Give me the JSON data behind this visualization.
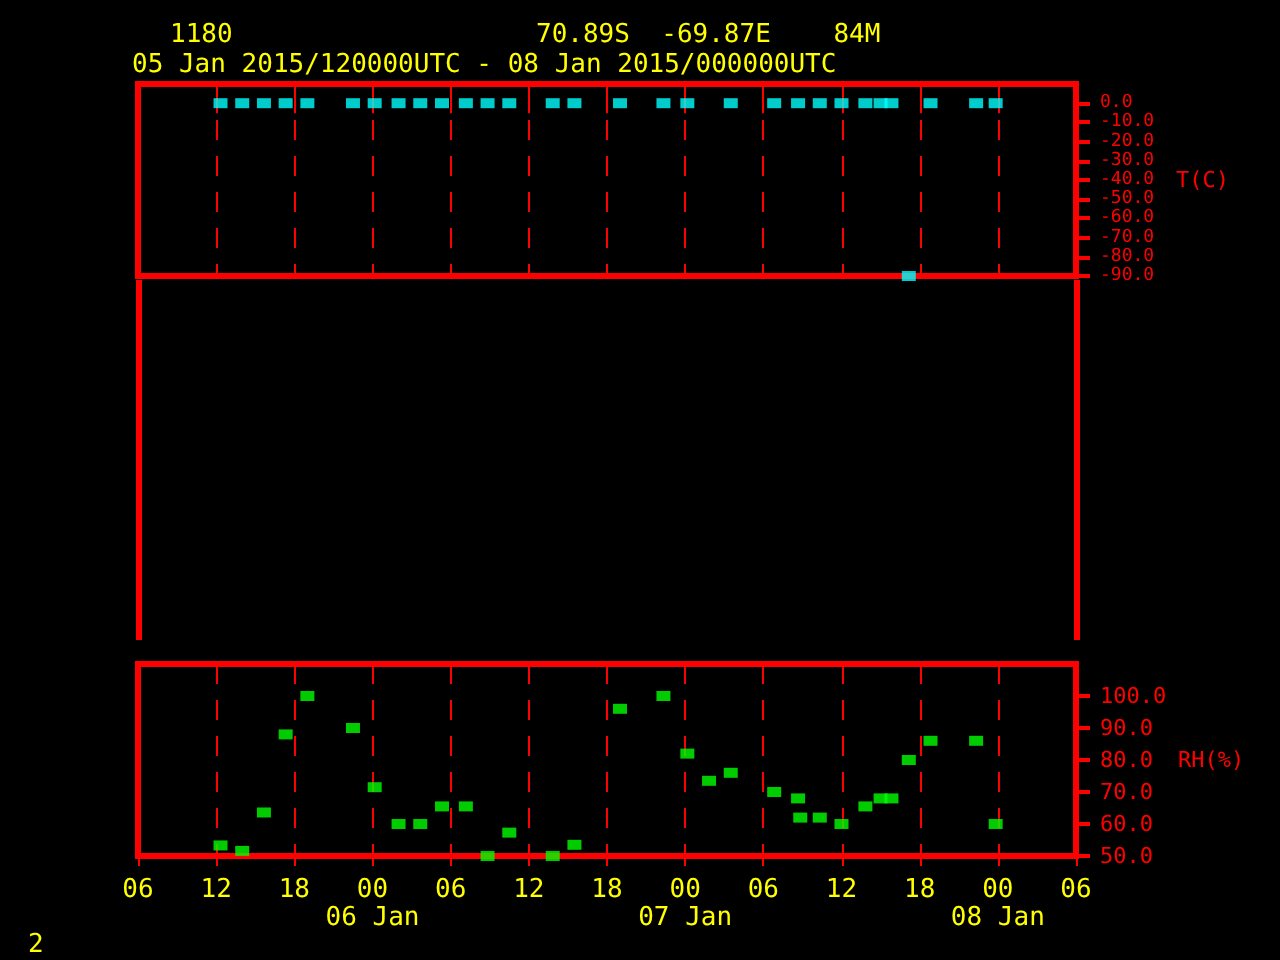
{
  "chart_data": [
    {
      "type": "scatter",
      "title": "1180",
      "subtitle": "05 Jan 2015/120000UTC - 08 Jan 2015/000000UTC",
      "annotations": [
        "70.89S  -69.87E    84M"
      ],
      "ylabel": "T(C)",
      "xlim": [
        "2015-01-05T06:00",
        "2015-01-08T06:00"
      ],
      "xticks": [
        {
          "value": "2015-01-05T06:00",
          "label": null
        },
        {
          "value": "2015-01-05T12:00",
          "label": null
        },
        {
          "value": "2015-01-05T18:00",
          "label": null
        },
        {
          "value": "2015-01-06T00:00",
          "label": null
        },
        {
          "value": "2015-01-06T06:00",
          "label": null
        },
        {
          "value": "2015-01-06T12:00",
          "label": null
        },
        {
          "value": "2015-01-06T18:00",
          "label": null
        },
        {
          "value": "2015-01-07T00:00",
          "label": null
        },
        {
          "value": "2015-01-07T06:00",
          "label": null
        },
        {
          "value": "2015-01-07T12:00",
          "label": null
        },
        {
          "value": "2015-01-07T18:00",
          "label": null
        },
        {
          "value": "2015-01-08T00:00",
          "label": null
        },
        {
          "value": "2015-01-08T06:00",
          "label": null
        }
      ],
      "ylim": [
        -90,
        10
      ],
      "yticks": [
        {
          "value": 0,
          "label": "0.0"
        },
        {
          "value": -10,
          "label": "-10.0"
        },
        {
          "value": -20,
          "label": "-20.0"
        },
        {
          "value": -30,
          "label": "-30.0"
        },
        {
          "value": -40,
          "label": "-40.0"
        },
        {
          "value": -50,
          "label": "-50.0"
        },
        {
          "value": -60,
          "label": "-60.0"
        },
        {
          "value": -70,
          "label": "-70.0"
        },
        {
          "value": -80,
          "label": "-80.0"
        },
        {
          "value": -90,
          "label": "-90.0"
        }
      ],
      "grid": "x",
      "marker": "square",
      "tick_labels": "y",
      "series": [
        {
          "color": "#00ffff",
          "x": [
            "2015-01-05T12:20",
            "2015-01-05T14:00",
            "2015-01-05T15:40",
            "2015-01-05T17:20",
            "2015-01-05T19:00",
            "2015-01-05T22:30",
            "2015-01-06T00:10",
            "2015-01-06T02:00",
            "2015-01-06T03:40",
            "2015-01-06T05:20",
            "2015-01-06T07:10",
            "2015-01-06T08:50",
            "2015-01-06T10:30",
            "2015-01-06T13:50",
            "2015-01-06T15:30",
            "2015-01-06T19:00",
            "2015-01-06T22:20",
            "2015-01-07T00:10",
            "2015-01-07T03:30",
            "2015-01-07T06:50",
            "2015-01-07T08:40",
            "2015-01-07T10:20",
            "2015-01-07T12:00",
            "2015-01-07T13:50",
            "2015-01-07T15:00",
            "2015-01-07T15:50",
            "2015-01-07T17:10",
            "2015-01-07T18:50",
            "2015-01-07T22:20",
            "2015-01-07T23:50"
          ],
          "values": [
            0,
            0,
            0,
            0,
            0,
            0,
            0,
            0,
            0,
            0,
            0,
            0,
            0,
            0,
            0,
            0,
            0,
            0,
            0,
            0,
            0,
            0,
            0,
            0,
            0,
            0,
            -90,
            0,
            0,
            0
          ]
        }
      ]
    },
    {
      "type": "scatter",
      "ylabel": "RH(%)",
      "annotations": [
        "2"
      ],
      "xlim": [
        "2015-01-05T06:00",
        "2015-01-08T06:00"
      ],
      "xticks": [
        {
          "value": "2015-01-05T06:00",
          "label": "06"
        },
        {
          "value": "2015-01-05T12:00",
          "label": "12"
        },
        {
          "value": "2015-01-05T18:00",
          "label": "18"
        },
        {
          "value": "2015-01-06T00:00",
          "label": "00\n06 Jan"
        },
        {
          "value": "2015-01-06T06:00",
          "label": "06"
        },
        {
          "value": "2015-01-06T12:00",
          "label": "12"
        },
        {
          "value": "2015-01-06T18:00",
          "label": "18"
        },
        {
          "value": "2015-01-07T00:00",
          "label": "00\n07 Jan"
        },
        {
          "value": "2015-01-07T06:00",
          "label": "06"
        },
        {
          "value": "2015-01-07T12:00",
          "label": "12"
        },
        {
          "value": "2015-01-07T18:00",
          "label": "18"
        },
        {
          "value": "2015-01-08T00:00",
          "label": "00\n08 Jan"
        },
        {
          "value": "2015-01-08T06:00",
          "label": "06"
        }
      ],
      "ylim": [
        50,
        110
      ],
      "yticks": [
        {
          "value": 50,
          "label": "50.0"
        },
        {
          "value": 60,
          "label": "60.0"
        },
        {
          "value": 70,
          "label": "70.0"
        },
        {
          "value": 80,
          "label": "80.0"
        },
        {
          "value": 90,
          "label": "90.0"
        },
        {
          "value": 100,
          "label": "100.0"
        }
      ],
      "grid": "x",
      "marker": "square",
      "series": [
        {
          "color": "#00ff00",
          "x": [
            "2015-01-05T12:20",
            "2015-01-05T14:00",
            "2015-01-05T15:40",
            "2015-01-05T17:20",
            "2015-01-05T19:00",
            "2015-01-05T22:30",
            "2015-01-06T00:10",
            "2015-01-06T02:00",
            "2015-01-06T03:40",
            "2015-01-06T05:20",
            "2015-01-06T07:10",
            "2015-01-06T08:50",
            "2015-01-06T10:30",
            "2015-01-06T13:50",
            "2015-01-06T15:30",
            "2015-01-06T19:00",
            "2015-01-06T22:20",
            "2015-01-07T00:10",
            "2015-01-07T01:50",
            "2015-01-07T03:30",
            "2015-01-07T06:50",
            "2015-01-07T08:40",
            "2015-01-07T08:50",
            "2015-01-07T10:20",
            "2015-01-07T12:00",
            "2015-01-07T13:50",
            "2015-01-07T15:00",
            "2015-01-07T15:50",
            "2015-01-07T17:10",
            "2015-01-07T18:50",
            "2015-01-07T22:20",
            "2015-01-07T23:50"
          ],
          "values": [
            53.3,
            51.6,
            63.6,
            88,
            100,
            90,
            71.5,
            60,
            60,
            65.5,
            65.5,
            50,
            57.3,
            50,
            53.5,
            96,
            100,
            82,
            73.5,
            76,
            70,
            68,
            62,
            62,
            60,
            65.5,
            68,
            68,
            80,
            86,
            86,
            60
          ]
        }
      ]
    }
  ]
}
